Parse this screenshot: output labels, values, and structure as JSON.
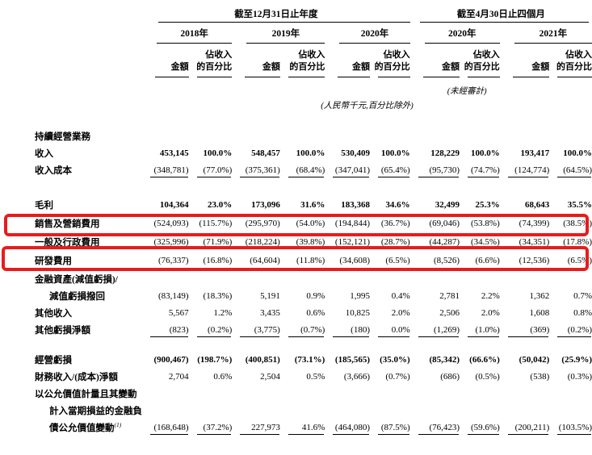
{
  "highlight_color": "#e81c1c",
  "table": {
    "header": {
      "group_dec": "截至12月31日止年度",
      "group_apr": "截至4月30日止四個月",
      "years": [
        "2018年",
        "2019年",
        "2020年",
        "2020年",
        "2021年"
      ],
      "amount_label": "金額",
      "pct_label": "佔收入\n的百分比",
      "unaudited": "(未經審計)",
      "units_note": "(人民幣千元,百分比除外)"
    },
    "rows": [
      {
        "label": "持續經營業務",
        "section": true,
        "gap_before": 18,
        "values": []
      },
      {
        "label": "收入",
        "bold": true,
        "values": [
          "453,145",
          "100.0%",
          "548,457",
          "100.0%",
          "530,409",
          "100.0%",
          "128,229",
          "100.0%",
          "193,417",
          "100.0%"
        ]
      },
      {
        "label": "收入成本",
        "underline": true,
        "values": [
          "(348,781)",
          "(77.0%)",
          "(375,361)",
          "(68.4%)",
          "(347,041)",
          "(65.4%)",
          "(95,730)",
          "(74.7%)",
          "(124,774)",
          "(64.5%)"
        ]
      },
      {
        "label": "毛利",
        "bold": true,
        "gap_before": 22,
        "values": [
          "104,364",
          "23.0%",
          "173,096",
          "31.6%",
          "183,368",
          "34.6%",
          "32,499",
          "25.3%",
          "68,643",
          "35.5%"
        ]
      },
      {
        "label": "銷售及營銷費用",
        "highlight": true,
        "values": [
          "(524,093)",
          "(115.7%)",
          "(295,970)",
          "(54.0%)",
          "(194,844)",
          "(36.7%)",
          "(69,046)",
          "(53.8%)",
          "(74,399)",
          "(38.5%)"
        ]
      },
      {
        "label": "一般及行政費用",
        "values": [
          "(325,996)",
          "(71.9%)",
          "(218,224)",
          "(39.8%)",
          "(152,121)",
          "(28.7%)",
          "(44,287)",
          "(34.5%)",
          "(34,351)",
          "(17.8%)"
        ]
      },
      {
        "label": "研發費用",
        "highlight": true,
        "values": [
          "(76,337)",
          "(16.8%)",
          "(64,604)",
          "(11.8%)",
          "(34,608)",
          "(6.5%)",
          "(8,526)",
          "(6.6%)",
          "(12,536)",
          "(6.5%)"
        ]
      },
      {
        "label": "金融資產(減值虧損)/",
        "values": []
      },
      {
        "label": "減值虧損撥回",
        "indent": true,
        "values": [
          "(83,149)",
          "(18.3%)",
          "5,191",
          "0.9%",
          "1,995",
          "0.4%",
          "2,781",
          "2.2%",
          "1,362",
          "0.7%"
        ]
      },
      {
        "label": "其他收入",
        "values": [
          "5,567",
          "1.2%",
          "3,435",
          "0.6%",
          "10,825",
          "2.0%",
          "2,506",
          "2.0%",
          "1,608",
          "0.8%"
        ]
      },
      {
        "label": "其他虧損淨額",
        "underline": true,
        "values": [
          "(823)",
          "(0.2%)",
          "(3,775)",
          "(0.7%)",
          "(180)",
          "0.0%",
          "(1,269)",
          "(1.0%)",
          "(369)",
          "(0.2%)"
        ]
      },
      {
        "label": "經營虧損",
        "bold": true,
        "gap_before": 16,
        "values": [
          "(900,467)",
          "(198.7%)",
          "(400,851)",
          "(73.1%)",
          "(185,565)",
          "(35.0%)",
          "(85,342)",
          "(66.6%)",
          "(50,042)",
          "(25.9%)"
        ]
      },
      {
        "label": "財務收入/(成本)淨額",
        "values": [
          "2,704",
          "0.6%",
          "2,504",
          "0.5%",
          "(3,666)",
          "(0.7%)",
          "(686)",
          "(0.5%)",
          "(538)",
          "(0.3%)"
        ]
      },
      {
        "label": "以公允價值計量且其變動",
        "values": []
      },
      {
        "label": "計入當期損益的金融負",
        "indent": true,
        "values": []
      },
      {
        "label": "債公允價值變動",
        "indent": true,
        "sup": "(1)",
        "underline": true,
        "values": [
          "(168,648)",
          "(37.2%)",
          "227,973",
          "41.6%",
          "(464,080)",
          "(87.5%)",
          "(76,423)",
          "(59.6%)",
          "(200,211)",
          "(103.5%)"
        ]
      }
    ]
  }
}
